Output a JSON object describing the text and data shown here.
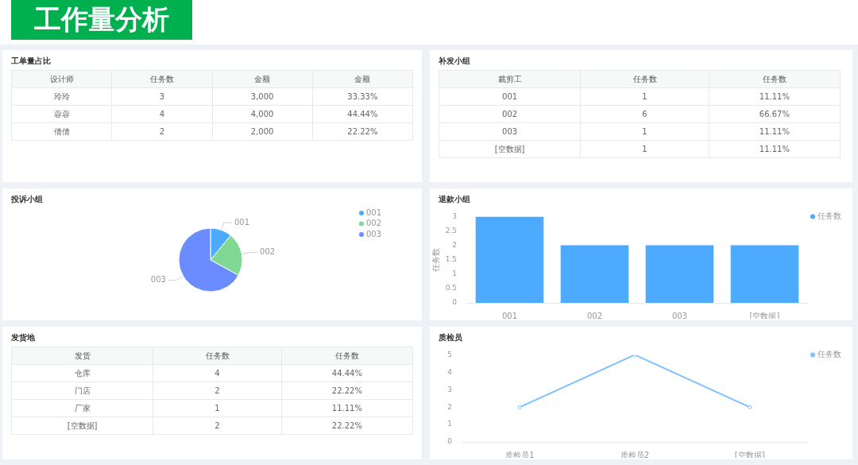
{
  "chart_data": [
    {
      "type": "other",
      "title": "工作量分析"
    },
    {
      "type": "other",
      "title": "工单量占比",
      "categories": [
        "设计师",
        "任务数",
        "金额",
        "金额"
      ],
      "cell_labels": [
        [
          "玲玲",
          "3",
          "3,000",
          "33.33%"
        ],
        [
          "蓉蓉",
          "4",
          "4,000",
          "44.44%"
        ],
        [
          "倩倩",
          "2",
          "2,000",
          "22.22%"
        ]
      ]
    },
    {
      "type": "other",
      "title": "补发小组",
      "categories": [
        "裁剪工",
        "任务数",
        "任务数"
      ],
      "cell_labels": [
        [
          "001",
          "1",
          "11.11%"
        ],
        [
          "002",
          "6",
          "66.67%"
        ],
        [
          "003",
          "1",
          "11.11%"
        ],
        [
          "[空数据]",
          "1",
          "11.11%"
        ]
      ]
    },
    {
      "type": "pie",
      "title": "投诉小组",
      "categories": [
        "001",
        "002",
        "003"
      ],
      "values": [
        11,
        22,
        67
      ],
      "colors": [
        "#4dabff",
        "#7fd992",
        "#6b8cff"
      ],
      "legend": "top right"
    },
    {
      "type": "bar",
      "title": "退款小组",
      "categories": [
        "001",
        "002",
        "003",
        "[空数据]"
      ],
      "series": [
        {
          "name": "任务数",
          "color": "#4dabff",
          "values": [
            3,
            2,
            2,
            2
          ]
        }
      ],
      "ylabel": "任务数",
      "ylim": [
        0,
        3
      ],
      "yticks": [
        0,
        0.5,
        1,
        1.5,
        2,
        2.5,
        3
      ],
      "legend": "top right"
    },
    {
      "type": "other",
      "title": "发货地",
      "categories": [
        "发货",
        "任务数",
        "任务数"
      ],
      "cell_labels": [
        [
          "仓库",
          "4",
          "44.44%"
        ],
        [
          "门店",
          "2",
          "22.22%"
        ],
        [
          "厂家",
          "1",
          "11.11%"
        ],
        [
          "[空数据]",
          "2",
          "22.22%"
        ]
      ]
    },
    {
      "type": "line",
      "title": "质检员",
      "categories": [
        "质检员1",
        "质检员2",
        "[空数据]"
      ],
      "series": [
        {
          "name": "任务数",
          "color": "#80c1ff",
          "values": [
            2,
            5,
            2
          ]
        }
      ],
      "ylim": [
        0,
        5
      ],
      "yticks": [
        0,
        1,
        2,
        3,
        4,
        5
      ],
      "legend": "top right",
      "marker": "circle"
    }
  ]
}
